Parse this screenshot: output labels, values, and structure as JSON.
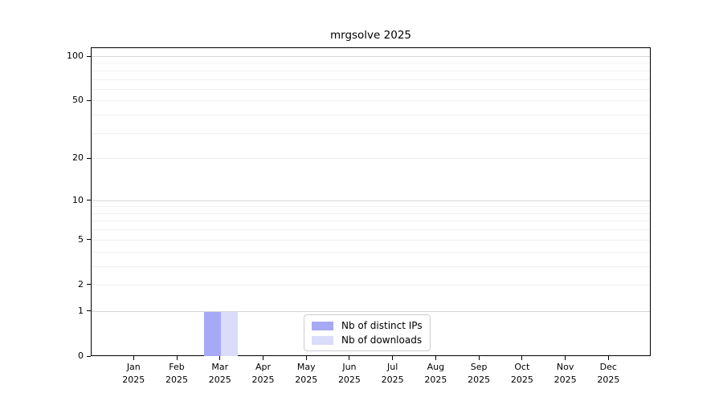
{
  "chart_data": {
    "type": "bar",
    "title": "mrgsolve 2025",
    "xlabel": "",
    "ylabel": "",
    "yscale": "log1p",
    "ylim": [
      0,
      115
    ],
    "grid": "horizontal",
    "legend_position": "bottom-center",
    "categories": [
      {
        "month": "Jan",
        "year": "2025"
      },
      {
        "month": "Feb",
        "year": "2025"
      },
      {
        "month": "Mar",
        "year": "2025"
      },
      {
        "month": "Apr",
        "year": "2025"
      },
      {
        "month": "May",
        "year": "2025"
      },
      {
        "month": "Jun",
        "year": "2025"
      },
      {
        "month": "Jul",
        "year": "2025"
      },
      {
        "month": "Aug",
        "year": "2025"
      },
      {
        "month": "Sep",
        "year": "2025"
      },
      {
        "month": "Oct",
        "year": "2025"
      },
      {
        "month": "Nov",
        "year": "2025"
      },
      {
        "month": "Dec",
        "year": "2025"
      }
    ],
    "series": [
      {
        "name": "Nb of distinct IPs",
        "color": "#a6a9f4",
        "values": [
          0,
          0,
          1,
          0,
          0,
          0,
          0,
          0,
          0,
          0,
          0,
          0
        ]
      },
      {
        "name": "Nb of downloads",
        "color": "#dadcfa",
        "values": [
          0,
          0,
          1,
          0,
          0,
          0,
          0,
          0,
          0,
          0,
          0,
          0
        ]
      }
    ],
    "y_tick_values": [
      0,
      1,
      2,
      5,
      10,
      20,
      50,
      100
    ],
    "colors": {
      "axis": "#000000",
      "grid_major": "#d6d6d6",
      "grid_minor": "#f0f0f0",
      "legend_border": "#cccccc",
      "background": "#ffffff"
    }
  }
}
